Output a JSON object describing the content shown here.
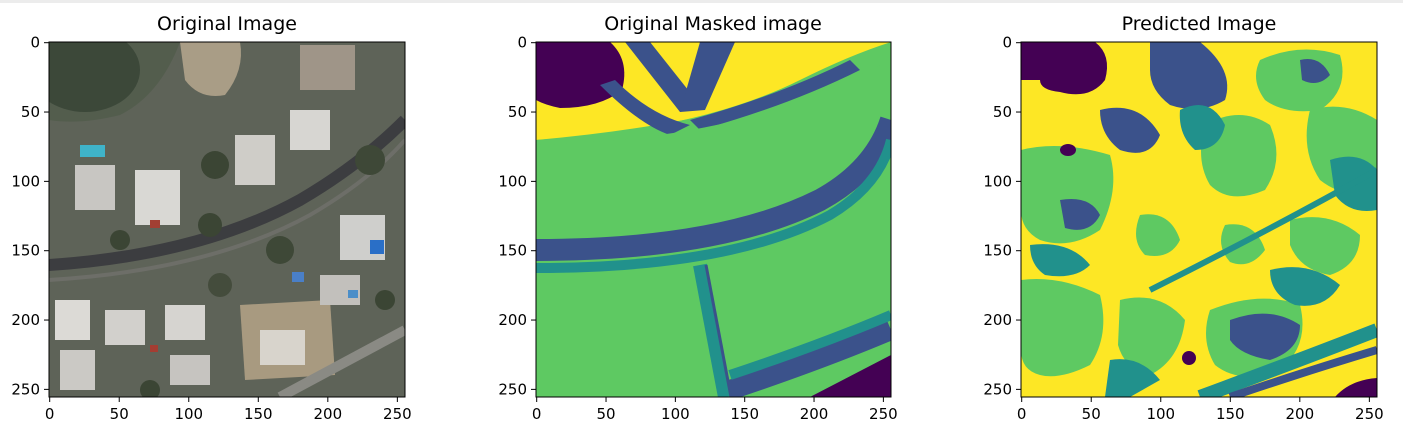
{
  "figure": {
    "panels": [
      {
        "title": "Original Image",
        "kind": "satellite-photo",
        "x_ticks": [
          "0",
          "50",
          "100",
          "150",
          "200",
          "250"
        ],
        "y_ticks": [
          "0",
          "50",
          "100",
          "150",
          "200",
          "250"
        ]
      },
      {
        "title": "Original Masked image",
        "kind": "segmentation-mask",
        "x_ticks": [
          "0",
          "50",
          "100",
          "150",
          "200",
          "250"
        ],
        "y_ticks": [
          "0",
          "50",
          "100",
          "150",
          "200",
          "250"
        ]
      },
      {
        "title": "Predicted Image",
        "kind": "predicted-segmentation",
        "x_ticks": [
          "0",
          "50",
          "100",
          "150",
          "200",
          "250"
        ],
        "y_ticks": [
          "0",
          "50",
          "100",
          "150",
          "200",
          "250"
        ]
      }
    ],
    "axis_range": [
      0,
      256
    ],
    "colormap": {
      "class_0": "#440154",
      "class_1": "#3b528b",
      "class_2": "#21918c",
      "class_3": "#5ec962",
      "class_4": "#fde725"
    }
  }
}
